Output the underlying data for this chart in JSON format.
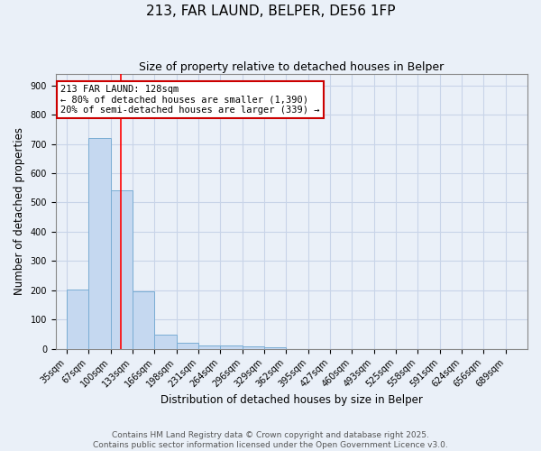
{
  "title_line1": "213, FAR LAUND, BELPER, DE56 1FP",
  "title_line2": "Size of property relative to detached houses in Belper",
  "xlabel": "Distribution of detached houses by size in Belper",
  "ylabel": "Number of detached properties",
  "bar_labels": [
    "35sqm",
    "67sqm",
    "100sqm",
    "133sqm",
    "166sqm",
    "198sqm",
    "231sqm",
    "264sqm",
    "296sqm",
    "329sqm",
    "362sqm",
    "395sqm",
    "427sqm",
    "460sqm",
    "493sqm",
    "525sqm",
    "558sqm",
    "591sqm",
    "624sqm",
    "656sqm",
    "689sqm"
  ],
  "bar_values": [
    203,
    720,
    543,
    196,
    47,
    20,
    12,
    10,
    8,
    5,
    0,
    0,
    0,
    0,
    0,
    0,
    0,
    0,
    0,
    0,
    0
  ],
  "bar_color": "#c5d8f0",
  "bar_edgecolor": "#7aadd4",
  "bar_linewidth": 0.7,
  "grid_color": "#c8d4e8",
  "background_color": "#eaf0f8",
  "red_line_x": 2.45,
  "annotation_text": "213 FAR LAUND: 128sqm\n← 80% of detached houses are smaller (1,390)\n20% of semi-detached houses are larger (339) →",
  "annotation_box_color": "#ffffff",
  "annotation_border_color": "#cc0000",
  "ylim": [
    0,
    940
  ],
  "yticks": [
    0,
    100,
    200,
    300,
    400,
    500,
    600,
    700,
    800,
    900
  ],
  "footer_line1": "Contains HM Land Registry data © Crown copyright and database right 2025.",
  "footer_line2": "Contains public sector information licensed under the Open Government Licence v3.0.",
  "footer_fontsize": 6.5,
  "title1_fontsize": 11,
  "title2_fontsize": 9,
  "xlabel_fontsize": 8.5,
  "ylabel_fontsize": 8.5,
  "tick_fontsize": 7
}
